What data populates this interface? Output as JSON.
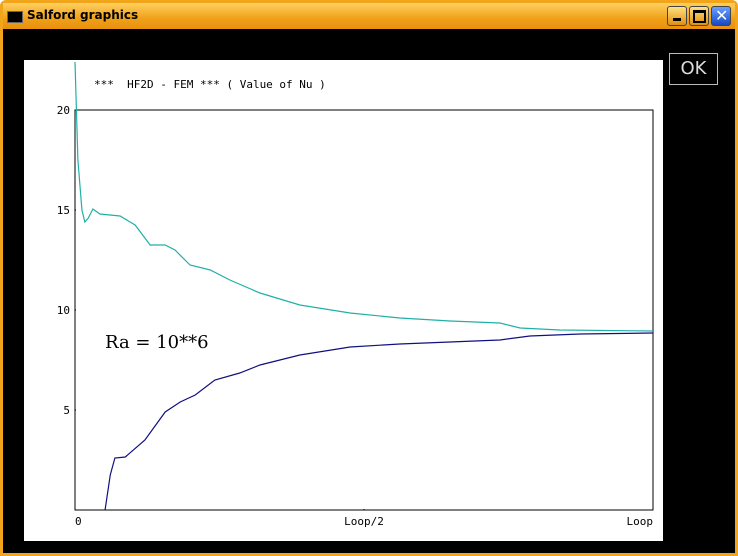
{
  "window": {
    "title": "Salford graphics",
    "button": "OK"
  },
  "chart_data": {
    "type": "line",
    "title": "***  HF2D - FEM *** ( Value of Nu )",
    "annotation": "Ra = 10**6",
    "xlim": [
      0,
      1
    ],
    "xticks": [
      0,
      {
        "value": 0.5,
        "label": "Loop/2"
      },
      {
        "value": 1,
        "label": "Loop"
      }
    ],
    "ylim": [
      0,
      20
    ],
    "yticks": [
      5,
      10,
      15,
      20
    ],
    "series": [
      {
        "color": "#20b0a8",
        "x": [
          0,
          0.005,
          0.012,
          0.017,
          0.023,
          0.031,
          0.043,
          0.078,
          0.104,
          0.13,
          0.156,
          0.173,
          0.199,
          0.234,
          0.268,
          0.32,
          0.389,
          0.476,
          0.562,
          0.649,
          0.735,
          0.77,
          0.839,
          1
        ],
        "values": [
          22.4,
          17.5,
          15,
          14.4,
          14.6,
          15.05,
          14.8,
          14.7,
          14.25,
          13.25,
          13.25,
          13,
          12.25,
          12,
          11.5,
          10.85,
          10.25,
          9.85,
          9.6,
          9.45,
          9.35,
          9.1,
          9,
          8.95
        ]
      },
      {
        "color": "#101080",
        "x": [
          0.052,
          0.061,
          0.069,
          0.087,
          0.121,
          0.156,
          0.182,
          0.208,
          0.242,
          0.285,
          0.32,
          0.389,
          0.476,
          0.562,
          0.735,
          0.787,
          0.874,
          1
        ],
        "values": [
          0,
          1.75,
          2.6,
          2.65,
          3.5,
          4.9,
          5.4,
          5.75,
          6.5,
          6.85,
          7.25,
          7.75,
          8.15,
          8.3,
          8.5,
          8.7,
          8.8,
          8.85
        ]
      }
    ]
  }
}
